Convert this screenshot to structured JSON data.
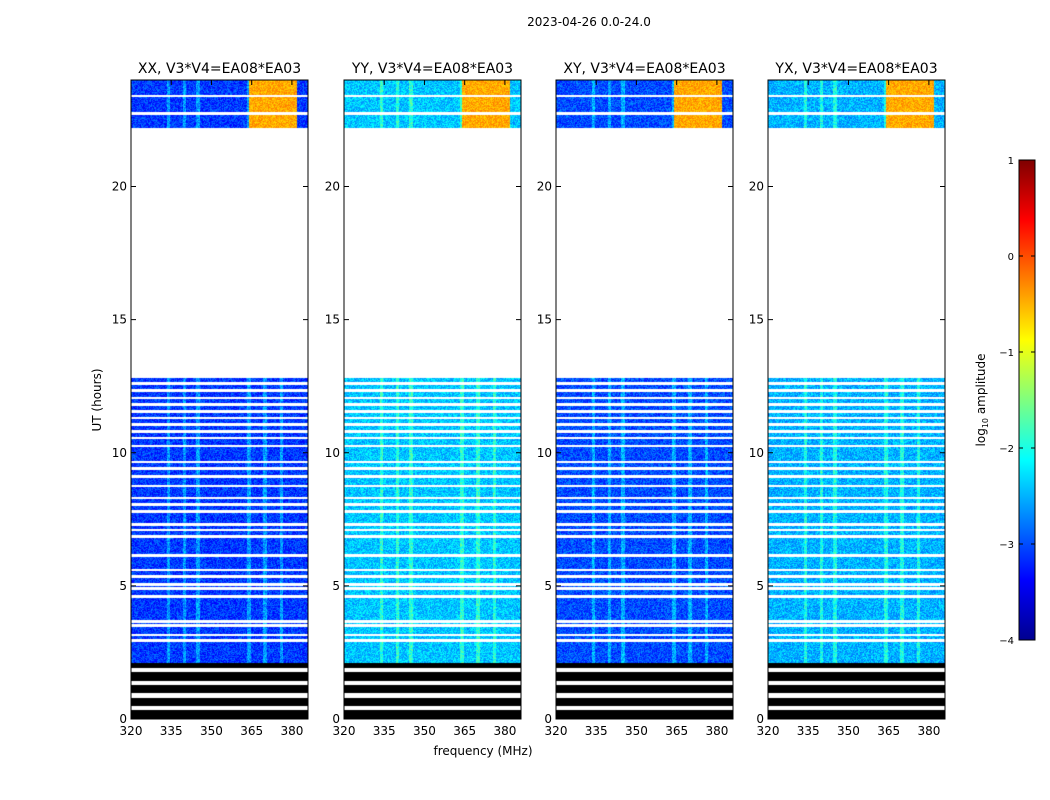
{
  "chart_data": {
    "type": "heatmap",
    "suptitle": "2023-04-26 0.0-24.0",
    "xlabel": "frequency (MHz)",
    "ylabel": "UT (hours)",
    "xlim": [
      320,
      386
    ],
    "ylim": [
      0,
      24
    ],
    "xticks": [
      320,
      335,
      350,
      365,
      380
    ],
    "yticks": [
      0,
      5,
      10,
      15,
      20
    ],
    "panels": [
      {
        "title": "XX, V3*V4=EA08*EA03",
        "base_level": -3.1,
        "variability": 0.35
      },
      {
        "title": "YY, V3*V4=EA08*EA03",
        "base_level": -2.4,
        "variability": 0.35
      },
      {
        "title": "XY, V3*V4=EA08*EA03",
        "base_level": -3.0,
        "variability": 0.35
      },
      {
        "title": "YX, V3*V4=EA08*EA03",
        "base_level": -2.5,
        "variability": 0.35
      }
    ],
    "data_time_ranges": [
      [
        2.1,
        12.8
      ],
      [
        22.2,
        24.0
      ]
    ],
    "no_data_time_range": [
      12.8,
      22.2
    ],
    "flagged_bottom_range": [
      0.0,
      2.1
    ],
    "gap_times": [
      2.95,
      3.15,
      3.5,
      3.65,
      4.6,
      4.9,
      5.05,
      5.35,
      5.6,
      6.15,
      6.85,
      7.1,
      7.3,
      7.8,
      8.05,
      8.3,
      8.75,
      9.1,
      9.4,
      9.65,
      10.25,
      10.55,
      10.8,
      11.05,
      11.3,
      11.55,
      11.8,
      12.05,
      12.35,
      12.6,
      22.75,
      23.4
    ],
    "rfi_channels_mhz": [
      334,
      340,
      345,
      364,
      370,
      376
    ],
    "rfi_band_top_mhz": [
      364,
      382
    ],
    "colorbar": {
      "label": "log10 amplitude",
      "label_main": "log",
      "label_sub": "10",
      "label_rest": " amplitude",
      "min": -4,
      "max": 1,
      "ticks": [
        1,
        0,
        -1,
        -2,
        -3,
        -4
      ],
      "colormap": "jet"
    }
  }
}
